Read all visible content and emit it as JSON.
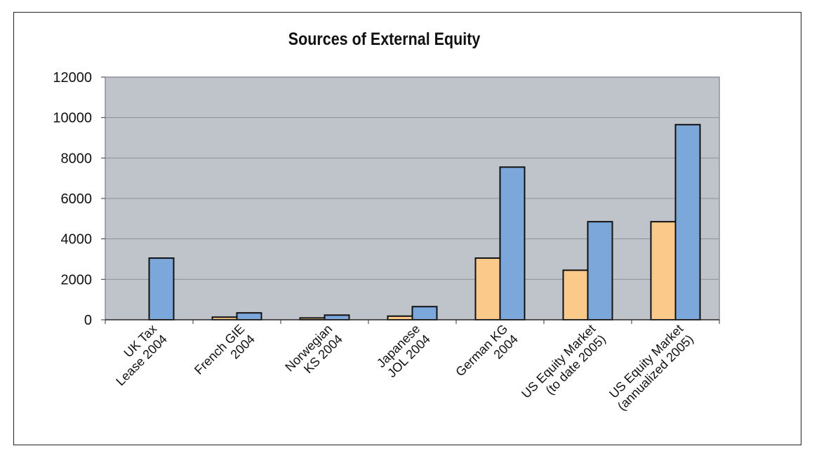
{
  "chart_data": {
    "type": "bar",
    "title": "Sources of External Equity",
    "xlabel": "",
    "ylabel": "",
    "ylim": [
      0,
      12000
    ],
    "yticks": [
      0,
      2000,
      4000,
      6000,
      8000,
      10000,
      12000
    ],
    "grid": true,
    "legend": "none",
    "categories": [
      [
        "UK Tax",
        "Lease 2004"
      ],
      [
        "French GIE",
        "2004"
      ],
      [
        "Norwegian",
        "KS 2004"
      ],
      [
        "Japanese",
        "JOL 2004"
      ],
      [
        "German KG",
        "2004"
      ],
      [
        "US Equity Market",
        "(to date 2005)"
      ],
      [
        "US Equity Market",
        "(annualized 2005)"
      ]
    ],
    "series": [
      {
        "color": "#FBC98A",
        "values": [
          0,
          130,
          90,
          180,
          3050,
          2450,
          4850
        ]
      },
      {
        "color": "#7BA7DB",
        "values": [
          3050,
          340,
          230,
          650,
          7550,
          4850,
          9650
        ]
      }
    ],
    "colors": {
      "plot_background": "#BFC4CB",
      "grid": "#8C929A",
      "bar_outline": "#111111"
    }
  }
}
